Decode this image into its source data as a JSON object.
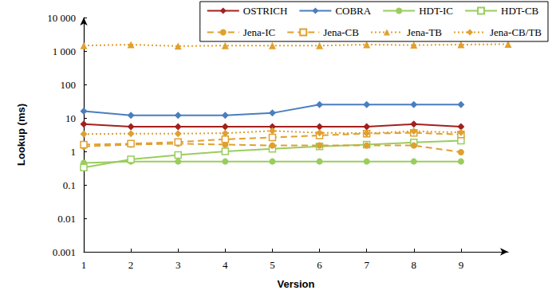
{
  "chart_data": {
    "type": "line",
    "x_label": "Version",
    "y_label": "Lookup (ms)",
    "x": [
      1,
      2,
      3,
      4,
      5,
      6,
      7,
      8,
      9,
      10
    ],
    "xlim": [
      1,
      10
    ],
    "xticks": [
      1,
      2,
      3,
      4,
      5,
      6,
      7,
      8,
      9
    ],
    "ylim": [
      0.001,
      10000
    ],
    "yticks": [
      0.001,
      0.01,
      0.1,
      1,
      10,
      100,
      {
        "value": 1000,
        "label": "1 000"
      },
      {
        "value": 10000,
        "label": "10 000"
      }
    ],
    "log": "y",
    "grid": false,
    "legend": "top-right",
    "series": [
      {
        "name": "OSTRICH",
        "color": "#a3201d",
        "marker": "diamond",
        "line_style": "solid",
        "values": [
          6.5,
          5.5,
          5.5,
          5.5,
          5.5,
          5.5,
          5.5,
          6.5,
          5.5,
          null
        ]
      },
      {
        "name": "COBRA",
        "color": "#4a7ebf",
        "marker": "diamond",
        "line_style": "solid",
        "values": [
          16,
          12,
          12,
          12,
          14,
          25,
          25,
          25,
          25,
          null
        ]
      },
      {
        "name": "HDT-IC",
        "color": "#9acd5e",
        "marker": "circle",
        "line_style": "solid",
        "values": [
          0.45,
          0.5,
          0.5,
          0.5,
          0.5,
          0.5,
          0.5,
          0.5,
          0.5,
          null
        ]
      },
      {
        "name": "HDT-CB",
        "color": "#9acd5e",
        "marker": "open-square",
        "line_style": "solid",
        "values": [
          0.33,
          0.58,
          0.78,
          1.0,
          1.2,
          1.4,
          1.6,
          1.85,
          2.1,
          null
        ]
      },
      {
        "name": "Jena-IC",
        "color": "#e0a030",
        "marker": "circle",
        "line_style": "dashed",
        "values": [
          1.4,
          1.6,
          1.7,
          1.6,
          1.5,
          1.5,
          1.5,
          1.5,
          0.95,
          null
        ]
      },
      {
        "name": "Jena-CB",
        "color": "#e0a030",
        "marker": "open-square",
        "line_style": "dashed",
        "values": [
          1.6,
          1.7,
          1.9,
          2.3,
          2.6,
          3.0,
          3.4,
          3.6,
          3.2,
          null
        ]
      },
      {
        "name": "Jena-TB",
        "color": "#e0a030",
        "marker": "triangle",
        "line_style": "dotted",
        "values": [
          1450,
          1550,
          1400,
          1450,
          1450,
          1450,
          1550,
          1500,
          1550,
          1600
        ]
      },
      {
        "name": "Jena-CB/TB",
        "color": "#e0a030",
        "marker": "diamond",
        "line_style": "dotted",
        "values": [
          3.3,
          3.4,
          3.4,
          3.5,
          4.1,
          3.6,
          3.5,
          4.0,
          3.7,
          null
        ]
      }
    ]
  }
}
